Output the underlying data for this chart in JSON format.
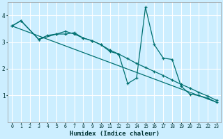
{
  "xlabel": "Humidex (Indice chaleur)",
  "background_color": "#cceeff",
  "grid_color": "#ffffff",
  "line_color": "#007070",
  "xlim": [
    -0.5,
    23.5
  ],
  "ylim": [
    0,
    4.5
  ],
  "yticks": [
    1,
    2,
    3,
    4
  ],
  "xticks": [
    0,
    1,
    2,
    3,
    4,
    5,
    6,
    7,
    8,
    9,
    10,
    11,
    12,
    13,
    14,
    15,
    16,
    17,
    18,
    19,
    20,
    21,
    22,
    23
  ],
  "series1_x": [
    0,
    1,
    3,
    4,
    5,
    6,
    7,
    8,
    9,
    10,
    11,
    12,
    13,
    14,
    15,
    16,
    17,
    18,
    19,
    20,
    21,
    22,
    23
  ],
  "series1_y": [
    3.6,
    3.8,
    3.1,
    3.25,
    3.3,
    3.4,
    3.3,
    3.15,
    3.05,
    2.9,
    2.65,
    2.55,
    1.45,
    1.65,
    4.3,
    2.9,
    2.4,
    2.35,
    1.35,
    1.05,
    1.0,
    0.9,
    0.75
  ],
  "series2_x": [
    0,
    1,
    3,
    5,
    6,
    7,
    8,
    9,
    10,
    11,
    12,
    13,
    14,
    15,
    16,
    17,
    18,
    19,
    20,
    21,
    22,
    23
  ],
  "series2_y": [
    3.6,
    3.8,
    3.1,
    3.3,
    3.3,
    3.35,
    3.15,
    3.05,
    2.9,
    2.7,
    2.55,
    2.38,
    2.2,
    2.05,
    1.9,
    1.75,
    1.58,
    1.42,
    1.28,
    1.12,
    0.98,
    0.82
  ],
  "series3_x": [
    0,
    23
  ],
  "series3_y": [
    3.6,
    0.75
  ]
}
